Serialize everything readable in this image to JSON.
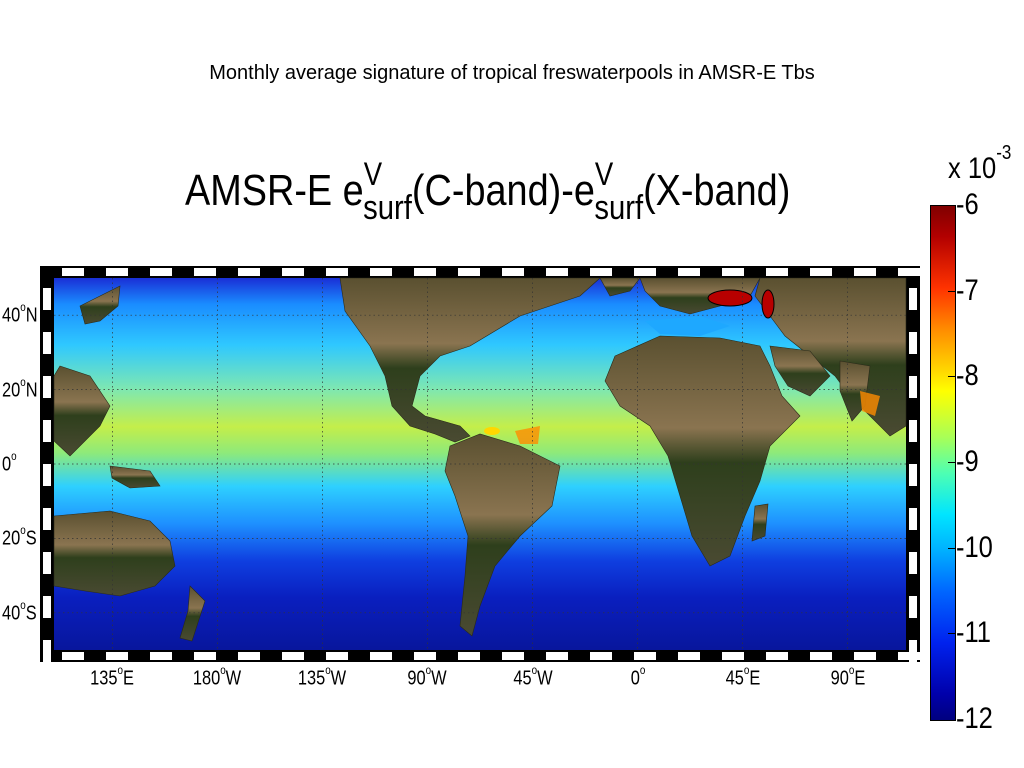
{
  "slide_title": "Monthly average signature of tropical freswaterpools in AMSR-E Tbs",
  "figure_title": {
    "prefix": "AMSR-E e",
    "sup1": "V",
    "sub1": "surf",
    "middle": "(C-band)-e",
    "sup2": "V",
    "sub2": "surf",
    "suffix": "(X-band)"
  },
  "lat_labels": [
    {
      "deg": "40",
      "hemi": "N",
      "value": 40
    },
    {
      "deg": "20",
      "hemi": "N",
      "value": 20
    },
    {
      "deg": "0",
      "hemi": "",
      "value": 0
    },
    {
      "deg": "20",
      "hemi": "S",
      "value": -20
    },
    {
      "deg": "40",
      "hemi": "S",
      "value": -40
    }
  ],
  "lon_labels": [
    {
      "deg": "135",
      "hemi": "E",
      "value": 135
    },
    {
      "deg": "180",
      "hemi": "W",
      "value": 180
    },
    {
      "deg": "135",
      "hemi": "W",
      "value": 225
    },
    {
      "deg": "90",
      "hemi": "W",
      "value": 270
    },
    {
      "deg": "45",
      "hemi": "W",
      "value": 315
    },
    {
      "deg": "0",
      "hemi": "",
      "value": 360
    },
    {
      "deg": "45",
      "hemi": "E",
      "value": 405
    },
    {
      "deg": "90",
      "hemi": "E",
      "value": 450
    }
  ],
  "map_extent": {
    "lon_min": 110,
    "lon_max": 475,
    "lat_min": -50,
    "lat_max": 50
  },
  "colorbar": {
    "exponent_base": "x 10",
    "exponent_power": "-3",
    "ticks": [
      "-6",
      "-7",
      "-8",
      "-9",
      "-10",
      "-11",
      "-12"
    ],
    "min": -12,
    "max": -6
  },
  "colors": {
    "ocean_deep": "#0a1fbf",
    "ocean_mid": "#1ea8ff",
    "ocean_warm": "#c8f040",
    "land": "#6b5a3a",
    "land_green": "#2e3f1c"
  }
}
